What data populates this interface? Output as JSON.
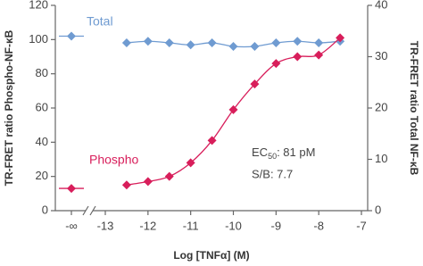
{
  "chart_data": {
    "type": "line",
    "x_label": "Log [TNFα] (M)",
    "y_label": "TR-FRET ratio Phospho-NF-κB",
    "y2_label": "TR-FRET ratio Total NF-κB",
    "x": [
      "-∞",
      -12.5,
      -12,
      -11.5,
      -11,
      -10.5,
      -10,
      -9.5,
      -9,
      -8.5,
      -8,
      -7.5
    ],
    "xlim": [
      -13,
      -7
    ],
    "xticks": [
      -13,
      -12,
      -11,
      -10,
      -9,
      -8,
      -7
    ],
    "ylim": [
      0,
      120
    ],
    "yticks": [
      0,
      20,
      40,
      60,
      80,
      100,
      120
    ],
    "y2lim": [
      0,
      40
    ],
    "y2ticks": [
      0,
      10,
      20,
      30,
      40
    ],
    "series": [
      {
        "name": "Total",
        "color": "#6f9bd1",
        "axis": "y2",
        "values": [
          34,
          32.7,
          33,
          32.7,
          32.3,
          32.7,
          32,
          32,
          32.7,
          33,
          32.7,
          33
        ]
      },
      {
        "name": "Phospho",
        "color": "#d81e5b",
        "values": [
          13,
          15,
          17,
          20,
          28,
          41,
          59,
          74,
          86,
          90,
          91,
          101
        ]
      }
    ],
    "annotations": [
      {
        "text": "EC",
        "subscript": "50",
        "suffix": ": 81 pM"
      },
      {
        "text": "S/B: 7.7"
      }
    ]
  }
}
